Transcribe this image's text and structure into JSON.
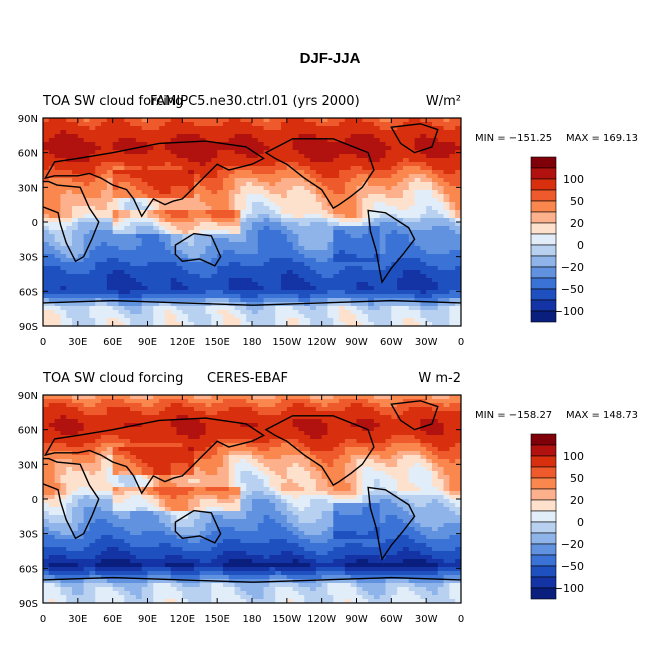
{
  "figure_title": "DJF-JJA",
  "colorbar_labels": [
    "100",
    "50",
    "20",
    "0",
    "−20",
    "−50",
    "−100"
  ],
  "colorbar_colors": [
    "#80000a",
    "#b2120f",
    "#d8300f",
    "#ee5a2b",
    "#f9874e",
    "#fcb08c",
    "#fde1cc",
    "#e1eefa",
    "#b9d1f1",
    "#8fb4ea",
    "#6092e0",
    "#3b72d6",
    "#1f50c0",
    "#1433a5",
    "#0a1e7d"
  ],
  "ocean_color": "#d7e6f8",
  "chart_data": [
    {
      "type": "heatmap",
      "panel": "top",
      "title_left": "TOA SW cloud forcing",
      "title_center": "FAMIPC5.ne30.ctrl.01 (yrs 2000)",
      "title_right": "W/m²",
      "min_label": "MIN = −151.25",
      "max_label": "MAX = 169.13",
      "min": -151.25,
      "max": 169.13,
      "xlabel_ticks": [
        "0",
        "30E",
        "60E",
        "90E",
        "120E",
        "150E",
        "180",
        "150W",
        "120W",
        "90W",
        "60W",
        "30W",
        "0"
      ],
      "ylabel_ticks": [
        "90N",
        "60N",
        "30N",
        "0",
        "30S",
        "60S",
        "90S"
      ],
      "lat_profile": [
        [
          90,
          40
        ],
        [
          80,
          60
        ],
        [
          65,
          85
        ],
        [
          55,
          70
        ],
        [
          45,
          45
        ],
        [
          35,
          25
        ],
        [
          25,
          15
        ],
        [
          15,
          8
        ],
        [
          10,
          5
        ],
        [
          5,
          0
        ],
        [
          0,
          -20
        ],
        [
          -10,
          -35
        ],
        [
          -20,
          -40
        ],
        [
          -30,
          -55
        ],
        [
          -40,
          -80
        ],
        [
          -50,
          -95
        ],
        [
          -57,
          -100
        ],
        [
          -62,
          -80
        ],
        [
          -68,
          -40
        ],
        [
          -75,
          -10
        ],
        [
          -90,
          -5
        ]
      ]
    },
    {
      "type": "heatmap",
      "panel": "bottom",
      "title_left": "TOA SW cloud forcing",
      "title_center": "CERES-EBAF",
      "title_right": "W m-2",
      "min_label": "MIN = −158.27",
      "max_label": "MAX = 148.73",
      "min": -158.27,
      "max": 148.73,
      "xlabel_ticks": [
        "0",
        "30E",
        "60E",
        "90E",
        "120E",
        "150E",
        "180",
        "150W",
        "120W",
        "90W",
        "60W",
        "30W",
        "0"
      ],
      "ylabel_ticks": [
        "90N",
        "60N",
        "30N",
        "0",
        "30S",
        "60S",
        "90S"
      ],
      "lat_profile": [
        [
          90,
          20
        ],
        [
          80,
          45
        ],
        [
          65,
          75
        ],
        [
          55,
          65
        ],
        [
          45,
          40
        ],
        [
          35,
          20
        ],
        [
          25,
          10
        ],
        [
          15,
          5
        ],
        [
          10,
          8
        ],
        [
          5,
          0
        ],
        [
          0,
          -15
        ],
        [
          -10,
          -25
        ],
        [
          -20,
          -35
        ],
        [
          -30,
          -50
        ],
        [
          -40,
          -75
        ],
        [
          -50,
          -100
        ],
        [
          -57,
          -125
        ],
        [
          -62,
          -95
        ],
        [
          -68,
          -50
        ],
        [
          -75,
          -15
        ],
        [
          -90,
          -8
        ]
      ]
    }
  ]
}
